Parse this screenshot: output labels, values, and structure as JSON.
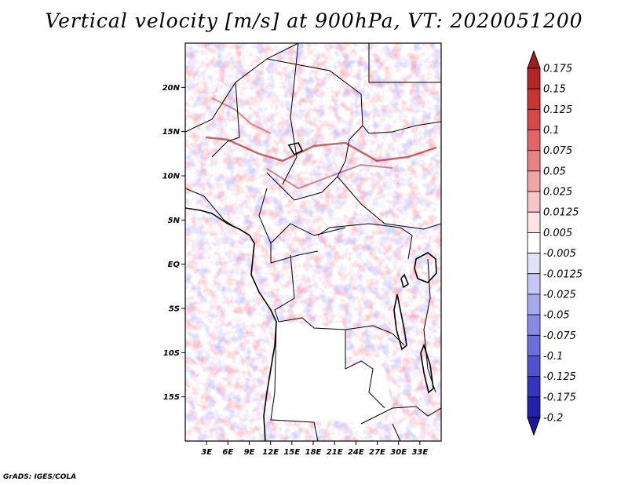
{
  "title": "Vertical velocity [m/s] at 900hPa, VT: 2020051200",
  "credit": "GrADS: IGES/COLA",
  "map": {
    "lon_range": [
      0,
      36
    ],
    "lat_range": [
      -20,
      25
    ],
    "lat_ticks": [
      {
        "value": 20,
        "label": "20N"
      },
      {
        "value": 15,
        "label": "15N"
      },
      {
        "value": 10,
        "label": "10N"
      },
      {
        "value": 5,
        "label": "5N"
      },
      {
        "value": 0,
        "label": "EQ"
      },
      {
        "value": -5,
        "label": "5S"
      },
      {
        "value": -10,
        "label": "10S"
      },
      {
        "value": -15,
        "label": "15S"
      }
    ],
    "lon_ticks": [
      {
        "value": 3,
        "label": "3E"
      },
      {
        "value": 6,
        "label": "6E"
      },
      {
        "value": 9,
        "label": "9E"
      },
      {
        "value": 12,
        "label": "12E"
      },
      {
        "value": 15,
        "label": "15E"
      },
      {
        "value": 18,
        "label": "18E"
      },
      {
        "value": 21,
        "label": "21E"
      },
      {
        "value": 24,
        "label": "24E"
      },
      {
        "value": 27,
        "label": "27E"
      },
      {
        "value": 30,
        "label": "30E"
      },
      {
        "value": 33,
        "label": "33E"
      }
    ]
  },
  "colorbar": {
    "levels": [
      {
        "label": "0.175",
        "color": "#9e1d1d"
      },
      {
        "label": "0.15",
        "color": "#b52424"
      },
      {
        "label": "0.125",
        "color": "#c83434"
      },
      {
        "label": "0.1",
        "color": "#d84848"
      },
      {
        "label": "0.075",
        "color": "#e26464"
      },
      {
        "label": "0.05",
        "color": "#ea8282"
      },
      {
        "label": "0.025",
        "color": "#f2a4a4"
      },
      {
        "label": "0.0125",
        "color": "#f8c6c6"
      },
      {
        "label": "0.005",
        "color": "#fde4e4"
      },
      {
        "label": "-0.005",
        "color": "#ffffff"
      },
      {
        "label": "-0.0125",
        "color": "#e2e2fb"
      },
      {
        "label": "-0.025",
        "color": "#c6c6f6"
      },
      {
        "label": "-0.05",
        "color": "#a8a8ef"
      },
      {
        "label": "-0.075",
        "color": "#8a8ae6"
      },
      {
        "label": "-0.1",
        "color": "#6c6cdc"
      },
      {
        "label": "-0.125",
        "color": "#5050d0"
      },
      {
        "label": "-0.175",
        "color": "#3434c0"
      },
      {
        "label": "-0.2",
        "color": "#2020a8"
      }
    ],
    "top_color": "#9e1d1d",
    "bottom_color": "#1818a0"
  }
}
